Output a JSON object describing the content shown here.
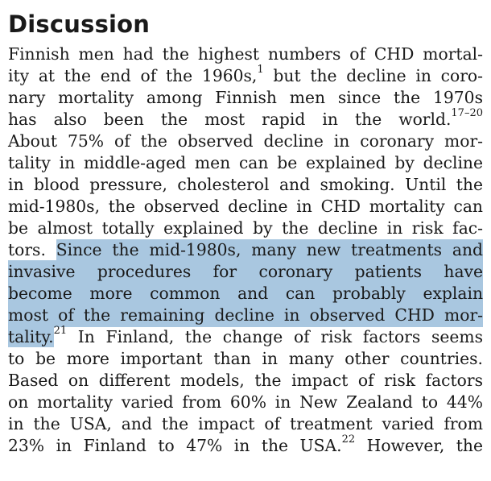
{
  "section": {
    "heading": "Discussion"
  },
  "lines": [
    {
      "parts": [
        {
          "t": "Finnish men had the highest numbers of CHD mortal-"
        }
      ]
    },
    {
      "parts": [
        {
          "t": "ity at the end of the 1960s,"
        },
        {
          "t": "1",
          "sup": true
        },
        {
          "t": " but the decline in coro-"
        }
      ]
    },
    {
      "parts": [
        {
          "t": "nary mortality among Finnish men since the 1970s"
        }
      ]
    },
    {
      "parts": [
        {
          "t": "has also been the most rapid in the world."
        },
        {
          "t": "17–20",
          "sup": true
        }
      ]
    },
    {
      "parts": [
        {
          "t": "About 75% of the observed decline in coronary mor-"
        }
      ]
    },
    {
      "parts": [
        {
          "t": "tality in middle-aged men can be explained by decline"
        }
      ]
    },
    {
      "parts": [
        {
          "t": "in blood pressure, cholesterol and smoking. Until the"
        }
      ]
    },
    {
      "parts": [
        {
          "t": "mid-1980s, the observed decline in CHD mortality can"
        }
      ]
    },
    {
      "parts": [
        {
          "t": "be almost totally explained by the decline in risk fac-"
        }
      ]
    },
    {
      "parts": [
        {
          "t": "tors. "
        },
        {
          "t": "Since the mid-1980s, many new treatments and",
          "hl": true
        }
      ]
    },
    {
      "hl_line": true,
      "parts": [
        {
          "t": "invasive procedures for coronary patients have"
        }
      ]
    },
    {
      "hl_line": true,
      "parts": [
        {
          "t": "become more common and can probably explain"
        }
      ]
    },
    {
      "hl_line": true,
      "parts": [
        {
          "t": "most of the remaining decline in observed CHD mor-"
        }
      ]
    },
    {
      "parts": [
        {
          "t": "tality.",
          "hl": true
        },
        {
          "t": "21",
          "sup": true
        },
        {
          "t": " In Finland, the change of risk factors seems"
        }
      ]
    },
    {
      "parts": [
        {
          "t": "to be more important than in many other countries."
        }
      ]
    },
    {
      "parts": [
        {
          "t": "Based on different models, the impact of risk factors"
        }
      ]
    },
    {
      "parts": [
        {
          "t": "on mortality varied from 60% in New Zealand to 44%"
        }
      ]
    },
    {
      "parts": [
        {
          "t": "in the USA, and the impact of treatment varied from"
        }
      ]
    },
    {
      "parts": [
        {
          "t": "23% in Finland to 47% in the USA."
        },
        {
          "t": "22",
          "sup": true
        },
        {
          "t": " However, the"
        }
      ]
    }
  ],
  "colors": {
    "highlight": "#a9c7e0",
    "text": "#1a1a1a",
    "background": "#ffffff"
  }
}
